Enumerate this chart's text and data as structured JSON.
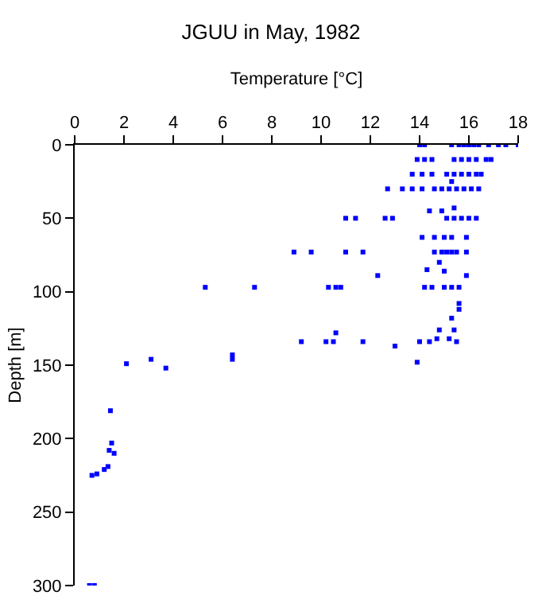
{
  "chart_data": {
    "type": "scatter",
    "title": "JGUU in May, 1982",
    "xlabel": "Temperature [°C]",
    "ylabel": "Depth [m]",
    "x": [
      14.0,
      14.2,
      15.3,
      15.6,
      15.8,
      16.0,
      16.2,
      16.4,
      16.8,
      17.2,
      17.5,
      18.0,
      13.9,
      14.2,
      14.5,
      15.4,
      15.7,
      16.0,
      16.3,
      16.7,
      16.9,
      13.7,
      14.1,
      14.5,
      15.1,
      15.4,
      15.7,
      16.0,
      16.3,
      16.5,
      12.7,
      13.3,
      13.7,
      14.1,
      14.6,
      14.9,
      15.2,
      15.5,
      15.8,
      16.1,
      16.4,
      15.3,
      11.0,
      11.4,
      12.6,
      12.9,
      15.1,
      15.4,
      15.7,
      16.0,
      16.3,
      14.4,
      14.9,
      15.4,
      14.1,
      14.6,
      15.0,
      15.3,
      15.9,
      8.9,
      9.6,
      11.0,
      11.7,
      14.6,
      14.9,
      15.1,
      15.3,
      15.5,
      15.9,
      14.8,
      14.3,
      15.0,
      12.3,
      15.9,
      5.3,
      7.3,
      10.3,
      10.6,
      10.8,
      14.2,
      14.5,
      15.0,
      15.3,
      15.6,
      15.6,
      15.6,
      15.3,
      14.8,
      15.4,
      14.7,
      15.2,
      9.2,
      10.2,
      10.5,
      11.7,
      14.0,
      14.4,
      15.5,
      13.0,
      10.6,
      6.4,
      6.4,
      2.1,
      3.1,
      3.7,
      13.9,
      1.45,
      1.5,
      1.4,
      1.6,
      1.35,
      1.2,
      0.9,
      0.7,
      0.6,
      0.8
    ],
    "values": [
      0,
      0,
      0,
      0,
      0,
      0,
      0,
      0,
      0,
      0,
      0,
      0,
      10,
      10,
      10,
      10,
      10,
      10,
      10,
      10,
      10,
      20,
      20,
      20,
      20,
      20,
      20,
      20,
      20,
      20,
      30,
      30,
      30,
      30,
      30,
      30,
      30,
      30,
      30,
      30,
      30,
      25,
      50,
      50,
      50,
      50,
      50,
      50,
      50,
      50,
      50,
      45,
      45,
      43,
      63,
      63,
      63,
      63,
      63,
      73,
      73,
      73,
      73,
      73,
      73,
      73,
      73,
      73,
      73,
      80,
      85,
      86,
      89,
      89,
      97,
      97,
      97,
      97,
      97,
      97,
      97,
      97,
      97,
      97,
      108,
      112,
      118,
      126,
      126,
      132,
      132,
      134,
      134,
      134,
      134,
      134,
      134,
      134,
      137,
      128,
      143,
      146,
      149,
      146,
      152,
      148,
      181,
      203,
      208,
      210,
      219,
      221,
      224,
      225,
      300,
      300
    ],
    "color": "#0000ff",
    "marker": "square",
    "xlim": [
      0,
      18
    ],
    "xticks": [
      0,
      2,
      4,
      6,
      8,
      10,
      12,
      14,
      16,
      18
    ],
    "ylim": [
      300,
      0
    ],
    "yticks": [
      0,
      50,
      100,
      150,
      200,
      250,
      300
    ]
  }
}
